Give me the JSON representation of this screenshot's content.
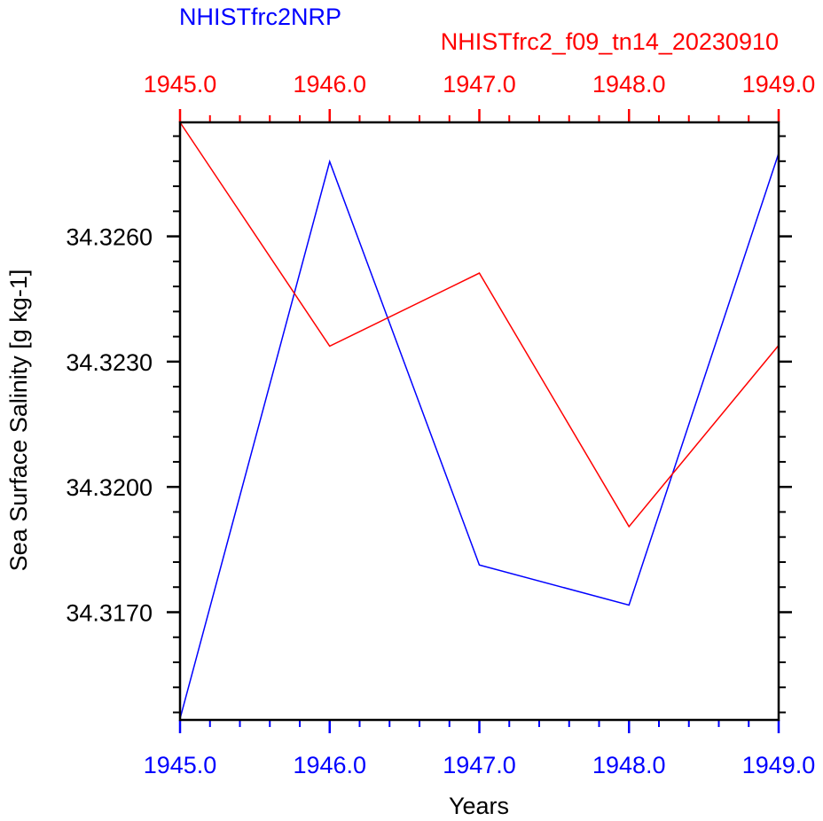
{
  "chart_data": {
    "type": "line",
    "title_left": "NHISTfrc2NRP",
    "title_right": "NHISTfrc2_f09_tn14_20230910",
    "xlabel": "Years",
    "ylabel": "Sea Surface Salinity [g kg-1]",
    "xlim": [
      1945.0,
      1949.0
    ],
    "ylim": [
      34.31442,
      34.32873
    ],
    "xticks": [
      1945.0,
      1946.0,
      1947.0,
      1948.0,
      1949.0
    ],
    "xtick_labels_bottom": [
      "1945.0",
      "1946.0",
      "1947.0",
      "1948.0",
      "1949.0"
    ],
    "xtick_labels_top": [
      "1945.0",
      "1946.0",
      "1947.0",
      "1948.0",
      "1949.0"
    ],
    "yticks": [
      34.317,
      34.32,
      34.323,
      34.326
    ],
    "ytick_labels": [
      "34.3170",
      "34.3200",
      "34.3230",
      "34.3260"
    ],
    "series": [
      {
        "name": "NHISTfrc2NRP",
        "color": "#0000ff",
        "x": [
          1945,
          1946,
          1947,
          1948,
          1949
        ],
        "values": [
          34.31445,
          34.32779,
          34.31813,
          34.31717,
          34.32799
        ]
      },
      {
        "name": "NHISTfrc2_f09_tn14_20230910",
        "color": "#ff0000",
        "x": [
          1945,
          1946,
          1947,
          1948,
          1949
        ],
        "values": [
          34.32873,
          34.32337,
          34.32512,
          34.31905,
          34.32339
        ]
      }
    ],
    "colors": {
      "bottom_axis": "#0000ff",
      "top_axis": "#ff0000",
      "frame": "#000000"
    }
  }
}
